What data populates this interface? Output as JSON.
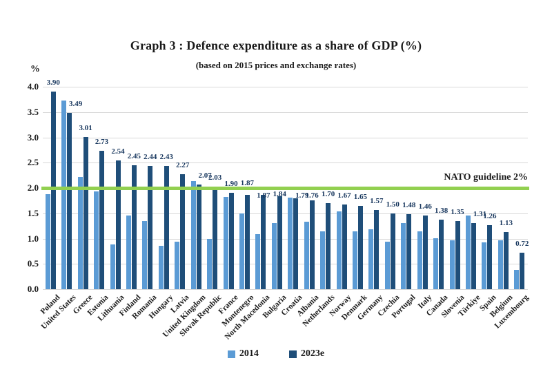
{
  "chart_data": {
    "type": "bar",
    "title": "Graph 3 : Defence expenditure as a share of GDP (%)",
    "subtitle": "(based on 2015 prices and exchange rates)",
    "ylabel": "%",
    "ylim": [
      0,
      4
    ],
    "ytick_step": 0.5,
    "grid": true,
    "legend_position": "bottom",
    "categories": [
      "Poland",
      "United States",
      "Greece",
      "Estonia",
      "Lithuania",
      "Finland",
      "Romania",
      "Hungary",
      "Latvia",
      "United Kingdom",
      "Slovak Republic",
      "France",
      "Montenegro",
      "North Macedonia",
      "Bulgaria",
      "Croatia",
      "Albania",
      "Netherlands",
      "Norway",
      "Denmark",
      "Germany",
      "Czechia",
      "Portugal",
      "Italy",
      "Canada",
      "Slovenia",
      "Türkiye",
      "Spain",
      "Belgium",
      "Luxembourg"
    ],
    "series": [
      {
        "name": "2014",
        "color": "#5B9BD5",
        "values": [
          1.88,
          3.73,
          2.22,
          1.93,
          0.88,
          1.45,
          1.35,
          0.86,
          0.94,
          2.14,
          0.99,
          1.82,
          1.5,
          1.09,
          1.31,
          1.81,
          1.34,
          1.15,
          1.54,
          1.15,
          1.18,
          0.94,
          1.31,
          1.14,
          1.01,
          0.97,
          1.45,
          0.92,
          0.97,
          0.38
        ],
        "data_labels": false
      },
      {
        "name": "2023e",
        "color": "#1F4E79",
        "values": [
          3.9,
          3.49,
          3.01,
          2.73,
          2.54,
          2.45,
          2.44,
          2.43,
          2.27,
          2.07,
          2.03,
          1.9,
          1.87,
          1.87,
          1.84,
          1.79,
          1.76,
          1.7,
          1.67,
          1.65,
          1.57,
          1.5,
          1.48,
          1.46,
          1.38,
          1.35,
          1.31,
          1.26,
          1.13,
          0.72
        ],
        "data_labels": true
      }
    ],
    "guideline": {
      "label": "NATO guideline 2%",
      "value": 2,
      "color": "#92D050"
    }
  },
  "legend": [
    {
      "label": "2014",
      "color": "#5B9BD5"
    },
    {
      "label": "2023e",
      "color": "#1F4E79"
    }
  ]
}
